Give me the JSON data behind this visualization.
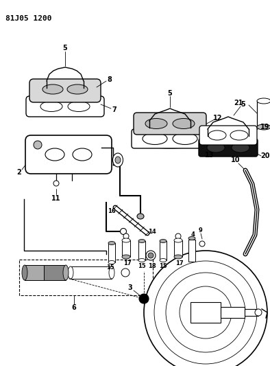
{
  "title": "81J05 1200",
  "bg": "#ffffff",
  "fg": "#000000",
  "fw": 3.94,
  "fh": 5.33,
  "dpi": 100
}
